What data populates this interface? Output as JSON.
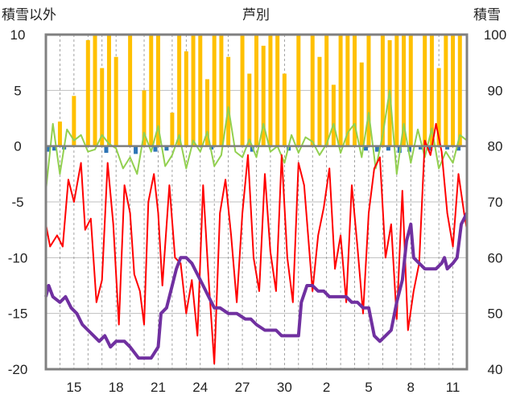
{
  "chart_data": {
    "type": "line",
    "title": "芦別",
    "left_axis_title": "積雪以外",
    "right_axis_title": "積雪",
    "x_tick_labels": [
      "15",
      "18",
      "21",
      "24",
      "27",
      "30",
      "2",
      "5",
      "8",
      "11"
    ],
    "x_tick_day_index": [
      2,
      5,
      8,
      11,
      14,
      17,
      20,
      23,
      26,
      29
    ],
    "x_day_count": 30,
    "y_left": {
      "ticks": [
        10,
        5,
        0,
        -5,
        -10,
        -15,
        -20
      ],
      "range": [
        -20,
        10
      ]
    },
    "y_right": {
      "ticks": [
        100,
        90,
        80,
        70,
        60,
        50,
        40
      ],
      "range": [
        40,
        100
      ]
    },
    "grid": {
      "horizontal": true,
      "vertical_daily": "dashed"
    },
    "colors": {
      "precipitation": "#ffc000",
      "sunshine": "#92d050",
      "temperature": "#ff0000",
      "snow_depth": "#7030a0",
      "negative_bars": "#2e75b6",
      "frame": "#808080",
      "zero_line": "#7f7f7f"
    },
    "series": [
      {
        "axis": "left",
        "kind": "bar",
        "color": "#ffc000",
        "values": [
          [
            1.0,
            2.2
          ],
          [
            2.0,
            4.5
          ],
          [
            3.0,
            9.5
          ],
          [
            3.5,
            10.0
          ],
          [
            4.0,
            7.0
          ],
          [
            4.5,
            10.0
          ],
          [
            5.0,
            8.0
          ],
          [
            6.0,
            10.0
          ],
          [
            7.0,
            5.0
          ],
          [
            7.5,
            10.0
          ],
          [
            8.0,
            10.0
          ],
          [
            9.0,
            3.0
          ],
          [
            9.5,
            10.0
          ],
          [
            10.0,
            8.5
          ],
          [
            10.5,
            10.0
          ],
          [
            11.0,
            10.0
          ],
          [
            11.5,
            6.0
          ],
          [
            12.0,
            10.0
          ],
          [
            12.5,
            10.0
          ],
          [
            13.0,
            8.0
          ],
          [
            14.0,
            10.0
          ],
          [
            14.5,
            6.5
          ],
          [
            15.0,
            10.0
          ],
          [
            15.5,
            9.0
          ],
          [
            16.0,
            10.0
          ],
          [
            16.5,
            10.0
          ],
          [
            17.0,
            6.5
          ],
          [
            18.0,
            10.0
          ],
          [
            19.0,
            10.0
          ],
          [
            19.5,
            8.0
          ],
          [
            20.0,
            10.0
          ],
          [
            20.5,
            5.5
          ],
          [
            21.0,
            10.0
          ],
          [
            21.5,
            10.0
          ],
          [
            22.0,
            10.0
          ],
          [
            22.5,
            7.5
          ],
          [
            23.0,
            10.0
          ],
          [
            24.0,
            10.0
          ],
          [
            24.5,
            9.5
          ],
          [
            25.0,
            10.0
          ],
          [
            25.5,
            10.0
          ],
          [
            26.0,
            10.0
          ],
          [
            27.0,
            10.0
          ],
          [
            27.5,
            10.0
          ],
          [
            28.0,
            7.0
          ],
          [
            28.5,
            10.0
          ],
          [
            29.0,
            10.0
          ],
          [
            29.5,
            10.0
          ]
        ]
      },
      {
        "axis": "left",
        "kind": "bar",
        "color": "#2e75b6",
        "values": [
          [
            0.2,
            -0.5
          ],
          [
            0.6,
            -0.4
          ],
          [
            1.3,
            -0.3
          ],
          [
            4.3,
            -0.6
          ],
          [
            6.4,
            -0.7
          ],
          [
            7.8,
            -0.5
          ],
          [
            8.6,
            -0.4
          ],
          [
            11.8,
            -0.3
          ],
          [
            14.7,
            -0.5
          ],
          [
            17.3,
            -0.4
          ],
          [
            22.8,
            -0.4
          ],
          [
            23.6,
            -0.5
          ],
          [
            24.4,
            -0.4
          ],
          [
            25.2,
            -0.6
          ],
          [
            25.9,
            -0.5
          ],
          [
            26.7,
            -0.3
          ],
          [
            27.4,
            -0.4
          ],
          [
            28.6,
            -0.3
          ],
          [
            29.4,
            -0.4
          ]
        ]
      },
      {
        "axis": "left",
        "kind": "line",
        "color": "#92d050",
        "values": [
          [
            0.0,
            -4.0
          ],
          [
            0.5,
            2.0
          ],
          [
            1.0,
            -2.5
          ],
          [
            1.5,
            1.5
          ],
          [
            2.0,
            0.5
          ],
          [
            2.5,
            1.0
          ],
          [
            3.0,
            -0.5
          ],
          [
            3.5,
            -0.3
          ],
          [
            4.0,
            1.0
          ],
          [
            4.5,
            0.2
          ],
          [
            5.0,
            -0.2
          ],
          [
            5.5,
            -2.0
          ],
          [
            6.0,
            -1.0
          ],
          [
            6.5,
            -2.5
          ],
          [
            7.0,
            1.2
          ],
          [
            7.5,
            -0.5
          ],
          [
            8.0,
            1.8
          ],
          [
            8.5,
            -1.8
          ],
          [
            9.0,
            -0.8
          ],
          [
            9.5,
            1.0
          ],
          [
            10.0,
            -2.0
          ],
          [
            10.5,
            0.5
          ],
          [
            11.0,
            -0.5
          ],
          [
            11.5,
            1.3
          ],
          [
            12.0,
            -1.8
          ],
          [
            12.5,
            -0.8
          ],
          [
            13.0,
            3.5
          ],
          [
            13.5,
            -0.5
          ],
          [
            14.0,
            -1.0
          ],
          [
            14.5,
            0.6
          ],
          [
            15.0,
            -1.0
          ],
          [
            15.5,
            2.0
          ],
          [
            16.0,
            -0.5
          ],
          [
            16.5,
            0.0
          ],
          [
            17.0,
            -1.5
          ],
          [
            17.5,
            1.0
          ],
          [
            18.0,
            -0.6
          ],
          [
            18.5,
            0.8
          ],
          [
            19.0,
            0.4
          ],
          [
            19.5,
            -0.8
          ],
          [
            20.0,
            0.2
          ],
          [
            20.5,
            2.0
          ],
          [
            21.0,
            -0.6
          ],
          [
            21.5,
            1.2
          ],
          [
            22.0,
            2.0
          ],
          [
            22.5,
            -1.0
          ],
          [
            23.0,
            3.0
          ],
          [
            23.5,
            -2.0
          ],
          [
            24.0,
            1.0
          ],
          [
            24.5,
            5.0
          ],
          [
            25.0,
            -2.5
          ],
          [
            25.5,
            2.0
          ],
          [
            26.0,
            -1.5
          ],
          [
            26.5,
            1.5
          ],
          [
            27.0,
            -1.0
          ],
          [
            27.5,
            1.6
          ],
          [
            28.0,
            -2.0
          ],
          [
            28.5,
            -0.5
          ],
          [
            29.0,
            -1.5
          ],
          [
            29.5,
            1.0
          ],
          [
            30.0,
            0.5
          ]
        ]
      },
      {
        "axis": "left",
        "kind": "line",
        "color": "#ff0000",
        "values": [
          [
            0.0,
            -7.0
          ],
          [
            0.3,
            -9.0
          ],
          [
            0.8,
            -8.0
          ],
          [
            1.2,
            -9.0
          ],
          [
            1.6,
            -3.0
          ],
          [
            2.0,
            -5.0
          ],
          [
            2.5,
            -1.5
          ],
          [
            2.8,
            -7.5
          ],
          [
            3.2,
            -6.5
          ],
          [
            3.6,
            -14.0
          ],
          [
            4.0,
            -12.0
          ],
          [
            4.4,
            -1.5
          ],
          [
            4.8,
            -7.0
          ],
          [
            5.2,
            -16.0
          ],
          [
            5.6,
            -3.5
          ],
          [
            6.0,
            -6.0
          ],
          [
            6.3,
            -11.5
          ],
          [
            6.7,
            -13.0
          ],
          [
            7.0,
            -16.0
          ],
          [
            7.3,
            -5.0
          ],
          [
            7.7,
            -2.5
          ],
          [
            8.0,
            -6.0
          ],
          [
            8.3,
            -12.5
          ],
          [
            8.8,
            -3.5
          ],
          [
            9.2,
            -10.0
          ],
          [
            9.6,
            -10.5
          ],
          [
            10.0,
            -15.0
          ],
          [
            10.4,
            -12.0
          ],
          [
            10.8,
            -17.0
          ],
          [
            11.2,
            -3.5
          ],
          [
            11.6,
            -12.0
          ],
          [
            12.0,
            -19.5
          ],
          [
            12.4,
            -6.0
          ],
          [
            12.8,
            -3.0
          ],
          [
            13.2,
            -8.0
          ],
          [
            13.6,
            -14.0
          ],
          [
            14.0,
            -6.0
          ],
          [
            14.4,
            -0.8
          ],
          [
            14.8,
            -10.0
          ],
          [
            15.2,
            -13.0
          ],
          [
            15.6,
            -2.5
          ],
          [
            16.0,
            -9.5
          ],
          [
            16.4,
            -13.0
          ],
          [
            16.8,
            -0.8
          ],
          [
            17.2,
            -10.0
          ],
          [
            17.6,
            -14.0
          ],
          [
            18.0,
            -1.5
          ],
          [
            18.4,
            -3.5
          ],
          [
            19.0,
            -13.0
          ],
          [
            19.4,
            -8.0
          ],
          [
            19.8,
            -5.5
          ],
          [
            20.2,
            -2.0
          ],
          [
            20.6,
            -11.0
          ],
          [
            21.0,
            -8.0
          ],
          [
            21.4,
            -14.0
          ],
          [
            21.8,
            -3.5
          ],
          [
            22.2,
            -9.0
          ],
          [
            22.6,
            -15.0
          ],
          [
            23.0,
            -6.0
          ],
          [
            23.4,
            -2.0
          ],
          [
            23.8,
            -1.0
          ],
          [
            24.2,
            -10.0
          ],
          [
            24.6,
            -7.0
          ],
          [
            25.0,
            -15.5
          ],
          [
            25.4,
            -4.0
          ],
          [
            25.8,
            -16.5
          ],
          [
            26.2,
            -13.0
          ],
          [
            26.6,
            -10.5
          ],
          [
            27.0,
            0.5
          ],
          [
            27.4,
            -0.8
          ],
          [
            27.8,
            2.0
          ],
          [
            28.2,
            -0.5
          ],
          [
            28.6,
            -6.0
          ],
          [
            29.0,
            -9.0
          ],
          [
            29.4,
            -2.5
          ],
          [
            29.8,
            -6.0
          ],
          [
            30.0,
            -7.5
          ]
        ]
      },
      {
        "axis": "right",
        "kind": "line",
        "color": "#7030a0",
        "values": [
          [
            0.0,
            53.0
          ],
          [
            0.2,
            55.0
          ],
          [
            0.5,
            53.0
          ],
          [
            1.0,
            52.0
          ],
          [
            1.4,
            53.0
          ],
          [
            1.8,
            51.0
          ],
          [
            2.2,
            50.0
          ],
          [
            2.6,
            48.0
          ],
          [
            3.0,
            47.0
          ],
          [
            3.4,
            46.0
          ],
          [
            3.8,
            45.0
          ],
          [
            4.2,
            46.0
          ],
          [
            4.6,
            44.0
          ],
          [
            5.0,
            45.0
          ],
          [
            5.6,
            45.0
          ],
          [
            6.0,
            44.0
          ],
          [
            6.6,
            42.0
          ],
          [
            7.0,
            42.0
          ],
          [
            7.5,
            42.0
          ],
          [
            8.0,
            44.0
          ],
          [
            8.2,
            50.0
          ],
          [
            8.6,
            51.0
          ],
          [
            9.0,
            55.0
          ],
          [
            9.3,
            58.0
          ],
          [
            9.6,
            60.0
          ],
          [
            10.0,
            60.0
          ],
          [
            10.4,
            59.0
          ],
          [
            10.8,
            57.0
          ],
          [
            11.2,
            55.0
          ],
          [
            11.6,
            53.0
          ],
          [
            12.0,
            51.0
          ],
          [
            12.4,
            51.0
          ],
          [
            13.0,
            50.0
          ],
          [
            13.6,
            50.0
          ],
          [
            14.2,
            49.0
          ],
          [
            14.6,
            49.0
          ],
          [
            15.0,
            48.0
          ],
          [
            15.6,
            47.0
          ],
          [
            16.0,
            47.0
          ],
          [
            16.4,
            47.0
          ],
          [
            16.8,
            46.0
          ],
          [
            17.4,
            46.0
          ],
          [
            18.0,
            46.0
          ],
          [
            18.2,
            52.0
          ],
          [
            18.6,
            55.0
          ],
          [
            19.0,
            55.0
          ],
          [
            19.4,
            54.0
          ],
          [
            19.8,
            54.0
          ],
          [
            20.2,
            53.0
          ],
          [
            20.6,
            53.0
          ],
          [
            21.0,
            53.0
          ],
          [
            21.4,
            53.0
          ],
          [
            21.8,
            52.0
          ],
          [
            22.2,
            52.0
          ],
          [
            22.6,
            51.0
          ],
          [
            23.0,
            51.0
          ],
          [
            23.4,
            46.0
          ],
          [
            23.8,
            45.0
          ],
          [
            24.2,
            46.0
          ],
          [
            24.6,
            47.0
          ],
          [
            25.0,
            52.0
          ],
          [
            25.4,
            56.0
          ],
          [
            25.7,
            63.0
          ],
          [
            26.0,
            66.0
          ],
          [
            26.2,
            60.0
          ],
          [
            26.6,
            59.0
          ],
          [
            27.0,
            58.0
          ],
          [
            27.4,
            58.0
          ],
          [
            27.8,
            58.0
          ],
          [
            28.2,
            59.0
          ],
          [
            28.4,
            60.0
          ],
          [
            28.6,
            58.0
          ],
          [
            29.0,
            59.0
          ],
          [
            29.3,
            60.0
          ],
          [
            29.6,
            66.0
          ],
          [
            30.0,
            68.0
          ]
        ]
      }
    ]
  }
}
